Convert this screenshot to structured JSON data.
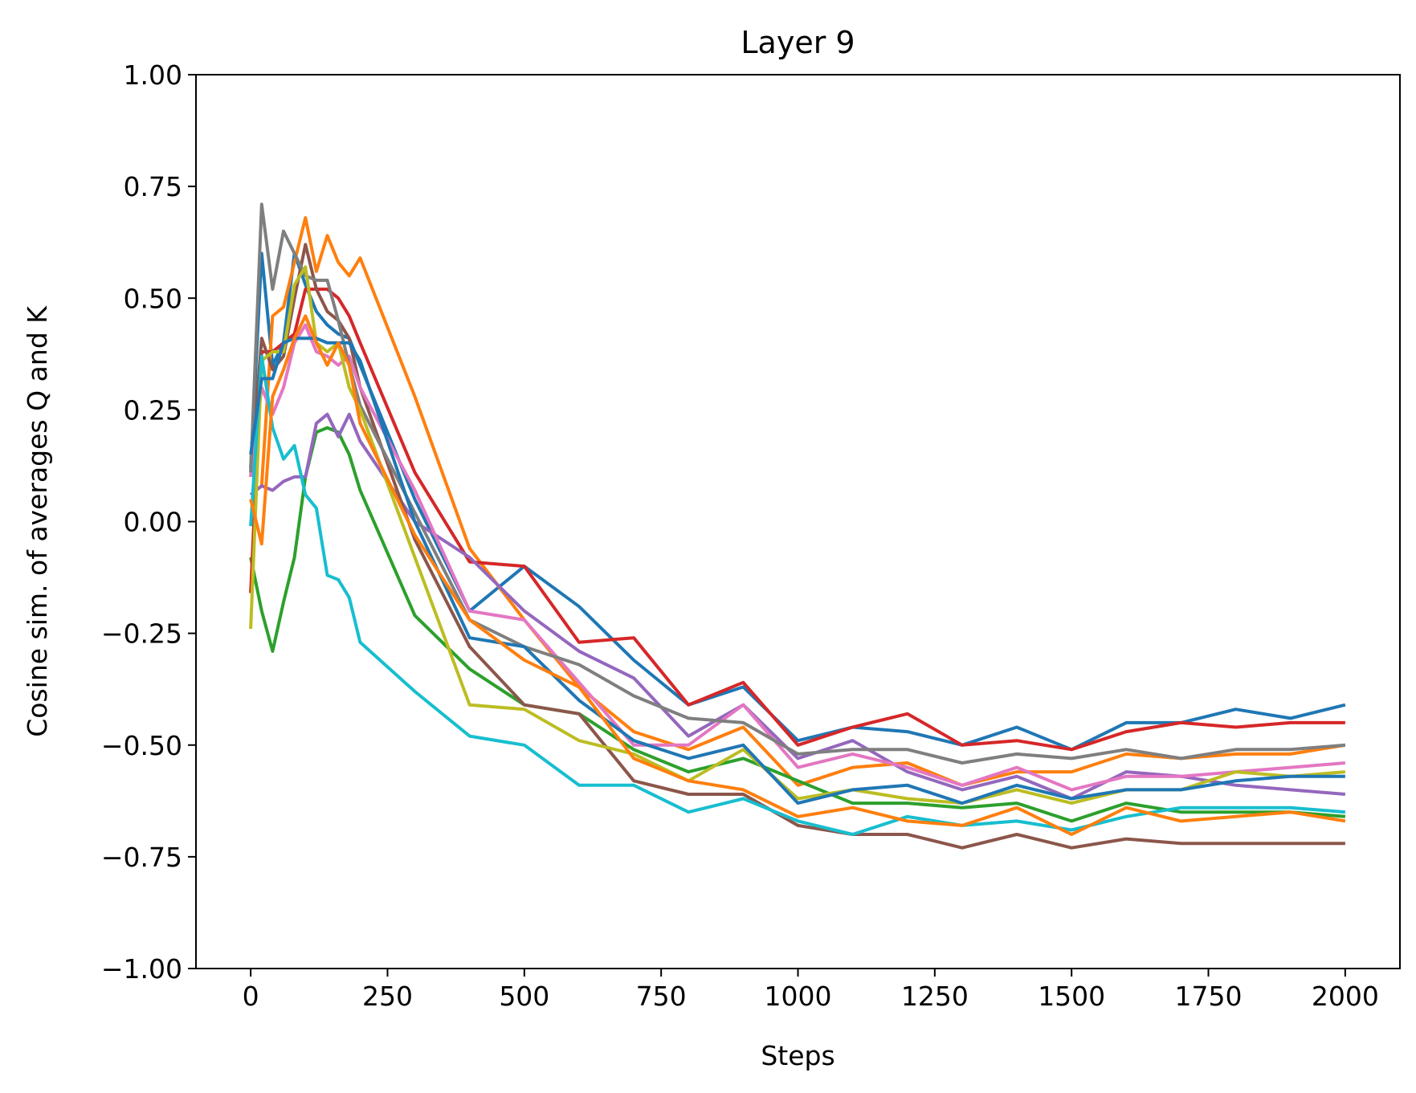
{
  "chart_data": {
    "type": "line",
    "title": "Layer 9",
    "xlabel": "Steps",
    "ylabel": "Cosine sim. of averages Q and K",
    "xlim": [
      -100,
      2100
    ],
    "ylim": [
      -1.0,
      1.0
    ],
    "xticks": [
      0,
      250,
      500,
      750,
      1000,
      1250,
      1500,
      1750,
      2000
    ],
    "xtick_labels": [
      "0",
      "250",
      "500",
      "750",
      "1000",
      "1250",
      "1500",
      "1750",
      "2000"
    ],
    "yticks": [
      1.0,
      0.75,
      0.5,
      0.25,
      0.0,
      -0.25,
      -0.5,
      -0.75,
      -1.0
    ],
    "ytick_labels": [
      "1.00",
      "0.75",
      "0.50",
      "0.25",
      "0.00",
      "−0.25",
      "−0.50",
      "−0.75",
      "−1.00"
    ],
    "grid": false,
    "x": [
      0,
      20,
      40,
      60,
      80,
      100,
      120,
      140,
      160,
      180,
      200,
      300,
      400,
      500,
      600,
      700,
      800,
      900,
      1000,
      1100,
      1200,
      1300,
      1400,
      1500,
      1600,
      1700,
      1800,
      1900,
      2000
    ],
    "series": [
      {
        "color": "#1f77b4",
        "values": [
          0.12,
          0.6,
          0.35,
          0.4,
          0.6,
          0.53,
          0.47,
          0.44,
          0.42,
          0.41,
          0.35,
          0.05,
          -0.2,
          -0.1,
          -0.19,
          -0.31,
          -0.41,
          -0.37,
          -0.49,
          -0.46,
          -0.47,
          -0.5,
          -0.46,
          -0.51,
          -0.45,
          -0.45,
          -0.42,
          -0.44,
          -0.41
        ]
      },
      {
        "color": "#ff7f0e",
        "values": [
          0.06,
          0.08,
          0.46,
          0.48,
          0.58,
          0.68,
          0.56,
          0.64,
          0.58,
          0.55,
          0.59,
          0.28,
          -0.06,
          -0.22,
          -0.37,
          -0.47,
          -0.51,
          -0.46,
          -0.59,
          -0.55,
          -0.54,
          -0.59,
          -0.56,
          -0.56,
          -0.52,
          -0.53,
          -0.52,
          -0.52,
          -0.5
        ]
      },
      {
        "color": "#2ca02c",
        "values": [
          -0.08,
          -0.2,
          -0.29,
          -0.18,
          -0.08,
          0.1,
          0.2,
          0.21,
          0.2,
          0.15,
          0.07,
          -0.21,
          -0.33,
          -0.41,
          -0.43,
          -0.51,
          -0.56,
          -0.53,
          -0.58,
          -0.63,
          -0.63,
          -0.64,
          -0.63,
          -0.67,
          -0.63,
          -0.65,
          -0.65,
          -0.65,
          -0.66
        ]
      },
      {
        "color": "#d62728",
        "values": [
          -0.16,
          0.38,
          0.38,
          0.4,
          0.42,
          0.52,
          0.52,
          0.52,
          0.5,
          0.46,
          0.4,
          0.11,
          -0.09,
          -0.1,
          -0.27,
          -0.26,
          -0.41,
          -0.36,
          -0.5,
          -0.46,
          -0.43,
          -0.5,
          -0.49,
          -0.51,
          -0.47,
          -0.45,
          -0.46,
          -0.45,
          -0.45
        ]
      },
      {
        "color": "#9467bd",
        "values": [
          0.06,
          0.08,
          0.07,
          0.09,
          0.1,
          0.1,
          0.22,
          0.24,
          0.19,
          0.24,
          0.18,
          0.0,
          -0.08,
          -0.2,
          -0.29,
          -0.35,
          -0.48,
          -0.41,
          -0.53,
          -0.49,
          -0.56,
          -0.6,
          -0.57,
          -0.62,
          -0.56,
          -0.57,
          -0.59,
          -0.6,
          -0.61
        ]
      },
      {
        "color": "#8c564b",
        "values": [
          0.1,
          0.41,
          0.34,
          0.37,
          0.5,
          0.62,
          0.52,
          0.47,
          0.45,
          0.41,
          0.3,
          -0.04,
          -0.28,
          -0.41,
          -0.43,
          -0.58,
          -0.61,
          -0.61,
          -0.68,
          -0.7,
          -0.7,
          -0.73,
          -0.7,
          -0.73,
          -0.71,
          -0.72,
          -0.72,
          -0.72,
          -0.72
        ]
      },
      {
        "color": "#e377c2",
        "values": [
          0.1,
          0.3,
          0.24,
          0.3,
          0.4,
          0.44,
          0.38,
          0.37,
          0.35,
          0.37,
          0.3,
          0.07,
          -0.2,
          -0.22,
          -0.36,
          -0.5,
          -0.5,
          -0.41,
          -0.55,
          -0.52,
          -0.55,
          -0.59,
          -0.55,
          -0.6,
          -0.57,
          -0.57,
          -0.56,
          -0.55,
          -0.54
        ]
      },
      {
        "color": "#7f7f7f",
        "values": [
          0.11,
          0.71,
          0.52,
          0.65,
          0.6,
          0.55,
          0.54,
          0.54,
          0.45,
          0.35,
          0.26,
          0.02,
          -0.22,
          -0.28,
          -0.32,
          -0.39,
          -0.44,
          -0.45,
          -0.52,
          -0.51,
          -0.51,
          -0.54,
          -0.52,
          -0.53,
          -0.51,
          -0.53,
          -0.51,
          -0.51,
          -0.5
        ]
      },
      {
        "color": "#bcbd22",
        "values": [
          -0.24,
          0.36,
          0.38,
          0.38,
          0.53,
          0.57,
          0.4,
          0.38,
          0.4,
          0.3,
          0.25,
          -0.08,
          -0.41,
          -0.42,
          -0.49,
          -0.52,
          -0.58,
          -0.51,
          -0.62,
          -0.6,
          -0.62,
          -0.63,
          -0.6,
          -0.63,
          -0.6,
          -0.6,
          -0.56,
          -0.57,
          -0.56
        ]
      },
      {
        "color": "#17becf",
        "values": [
          -0.01,
          0.37,
          0.21,
          0.14,
          0.17,
          0.06,
          0.03,
          -0.12,
          -0.13,
          -0.17,
          -0.27,
          -0.38,
          -0.48,
          -0.5,
          -0.59,
          -0.59,
          -0.65,
          -0.62,
          -0.67,
          -0.7,
          -0.66,
          -0.68,
          -0.67,
          -0.69,
          -0.66,
          -0.64,
          -0.64,
          -0.64,
          -0.65
        ]
      },
      {
        "color": "#1f77b4",
        "values": [
          0.15,
          0.32,
          0.32,
          0.4,
          0.41,
          0.41,
          0.41,
          0.4,
          0.4,
          0.4,
          0.36,
          0.0,
          -0.26,
          -0.28,
          -0.4,
          -0.49,
          -0.53,
          -0.5,
          -0.63,
          -0.6,
          -0.59,
          -0.63,
          -0.59,
          -0.62,
          -0.6,
          -0.6,
          -0.58,
          -0.57,
          -0.57
        ]
      },
      {
        "color": "#ff7f0e",
        "values": [
          0.05,
          -0.05,
          0.28,
          0.34,
          0.41,
          0.46,
          0.4,
          0.35,
          0.4,
          0.35,
          0.22,
          -0.03,
          -0.22,
          -0.31,
          -0.37,
          -0.53,
          -0.58,
          -0.6,
          -0.66,
          -0.64,
          -0.67,
          -0.68,
          -0.64,
          -0.7,
          -0.64,
          -0.67,
          -0.66,
          -0.65,
          -0.67
        ]
      }
    ]
  }
}
